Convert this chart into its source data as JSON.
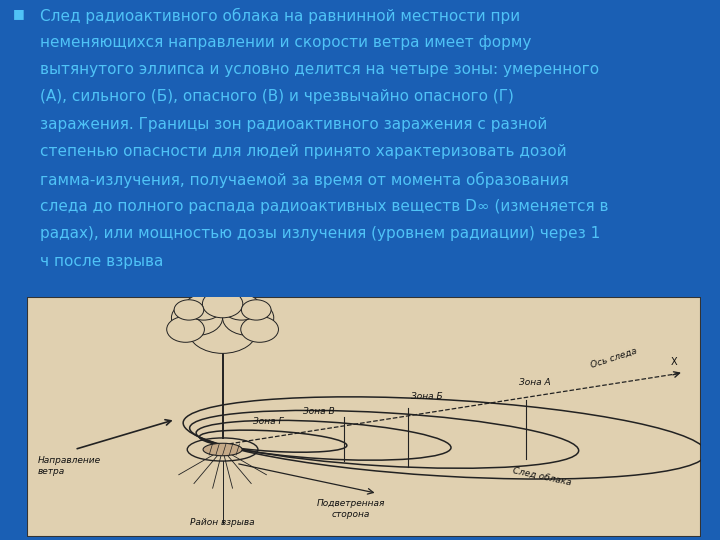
{
  "bg_color": "#1a5fb4",
  "text_color": "#4fc3f7",
  "bullet_char": "■",
  "line1": "След радиоактивного облака на равнинной местности при",
  "line2": "неменяющихся направлении и скорости ветра имеет форму",
  "line3": "вытянутого эллипса и условно делится на четыре зоны: умеренного",
  "line4": "(А), сильного (Б), опасного (В) и чрезвычайно опасного (Г)",
  "line5": "заражения. Границы зон радиоактивного заражения с разной",
  "line6": "степенью опасности для людей принято характеризовать дозой",
  "line7": "гамма-излучения, получаемой за время от момента образования",
  "line8": "следа до полного распада радиоактивных веществ D∞ (изменяется в",
  "line9": "радах), или мощностью дозы излучения (уровнем радиации) через 1",
  "line10": "ч после взрыва",
  "diagram_bg_color": "#e0d0b0",
  "diagram_border_color": "#333333",
  "line_color": "#222222",
  "label_color": "#111111",
  "font_size_main": 11.0,
  "zone_labels_ru": [
    "Зона А",
    "Зона Б",
    "Зона В",
    "Зона Г"
  ],
  "axis_label": "Ось следа",
  "wind_label": "Направление\nветра",
  "downwind_label": "Подветренная\nсторона",
  "explosion_label": "Район взрыва",
  "cloud_trail_label": "След облака"
}
